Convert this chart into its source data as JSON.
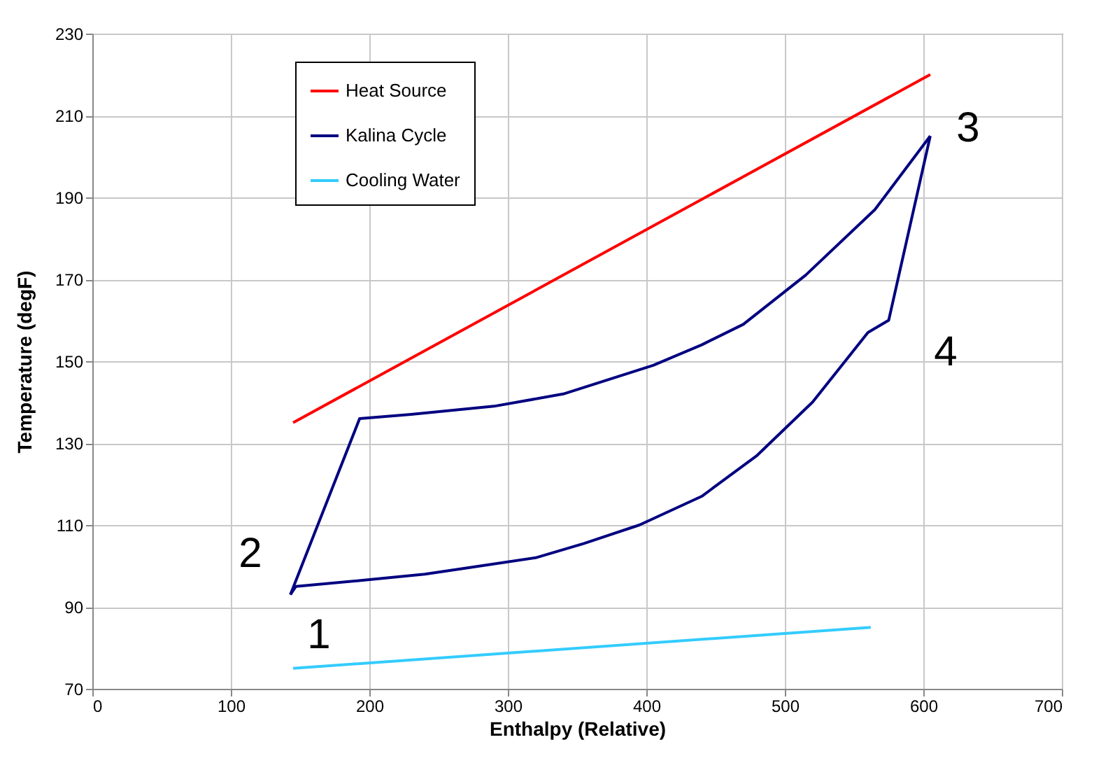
{
  "chart_data": {
    "type": "line",
    "xlabel": "Enthalpy (Relative)",
    "ylabel": "Temperature (degF)",
    "xlim": [
      0,
      700
    ],
    "xticks": [
      0,
      100,
      200,
      300,
      400,
      500,
      600,
      700
    ],
    "ylim": [
      70,
      230
    ],
    "yticks": [
      70,
      90,
      110,
      130,
      150,
      170,
      190,
      210,
      230
    ],
    "grid": true,
    "legend": "top left",
    "marker": "none",
    "line_style": "solid",
    "series": [
      {
        "name": "Heat Source",
        "color": "#ff0000",
        "x": [
          145,
          605
        ],
        "values": [
          135,
          220
        ]
      },
      {
        "name": "Kalina Cycle",
        "color": "#000080",
        "x": [
          143,
          147,
          195,
          240,
          270,
          320,
          355,
          395,
          440,
          480,
          520,
          560,
          575,
          605
        ],
        "values": [
          93,
          95,
          96.5,
          98,
          99.5,
          102,
          105.5,
          110,
          117,
          127,
          140,
          157,
          160,
          205
        ]
      },
      {
        "color": "#000080",
        "x": [
          143,
          193,
          230,
          290,
          340,
          405,
          440,
          470,
          515,
          565,
          605
        ],
        "values": [
          93,
          136,
          137,
          139,
          142,
          149,
          154,
          159,
          171,
          187,
          205
        ]
      },
      {
        "name": "Cooling Water",
        "color": "#33ccff",
        "x": [
          145,
          562
        ],
        "values": [
          75,
          85
        ]
      }
    ],
    "annotations": [
      "1",
      "2",
      "3",
      "4"
    ]
  }
}
